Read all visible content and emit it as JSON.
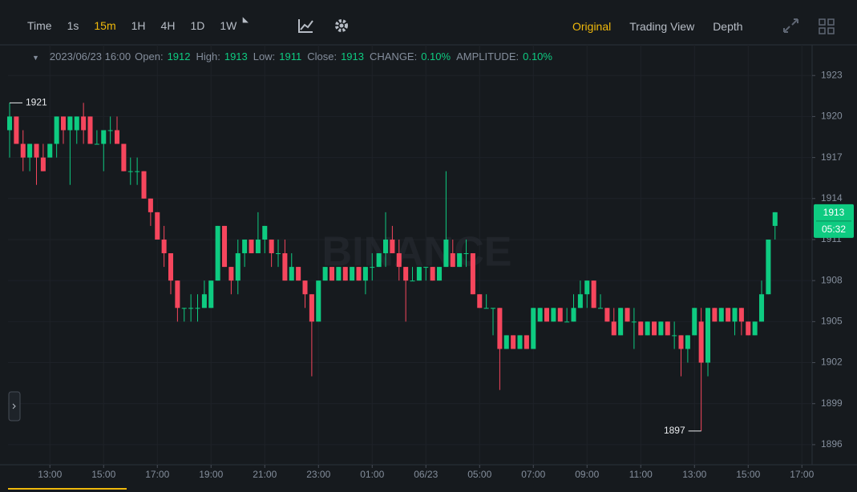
{
  "toolbar": {
    "intervals": [
      "Time",
      "1s",
      "15m",
      "1H",
      "4H",
      "1D",
      "1W"
    ],
    "views": [
      "Original",
      "Trading View",
      "Depth"
    ]
  },
  "info": {
    "datetime": "2023/06/23 16:00",
    "fields": [
      {
        "label": "Open:",
        "value": "1912"
      },
      {
        "label": "High:",
        "value": "1913"
      },
      {
        "label": "Low:",
        "value": "1911"
      },
      {
        "label": "Close:",
        "value": "1913"
      },
      {
        "label": "CHANGE:",
        "value": "0.10%"
      },
      {
        "label": "AMPLITUDE:",
        "value": "0.10%"
      }
    ]
  },
  "chart_data": {
    "type": "candlestick",
    "watermark": "BINANCE",
    "countdown": "05:32",
    "up_color": "#0ecb81",
    "down_color": "#f6465d",
    "grid": true,
    "open": [
      1919,
      1920,
      1918,
      1917,
      1918,
      1917,
      1917,
      1918,
      1920,
      1919,
      1919,
      1920,
      1920,
      1918,
      1918,
      1919,
      1919,
      1918,
      1916,
      1916,
      1916,
      1914,
      1913,
      1911,
      1910,
      1908,
      1906,
      1906,
      1906,
      1906,
      1906,
      1908,
      1912,
      1909,
      1908,
      1910,
      1911,
      1910,
      1911,
      1911,
      1910,
      1910,
      1908,
      1909,
      1908,
      1907,
      1905,
      1908,
      1909,
      1908,
      1909,
      1908,
      1909,
      1908,
      1909,
      1909,
      1910,
      1911,
      1910,
      1909,
      1908,
      1908,
      1909,
      1909,
      1908,
      1909,
      1910,
      1909,
      1910,
      1910,
      1907,
      1906,
      1906,
      1906,
      1903,
      1904,
      1903,
      1904,
      1903,
      1905,
      1906,
      1905,
      1906,
      1905,
      1905,
      1906,
      1907,
      1908,
      1906,
      1906,
      1905,
      1904,
      1906,
      1905,
      1905,
      1904,
      1905,
      1904,
      1905,
      1904,
      1904,
      1903,
      1904,
      1905,
      1902,
      1906,
      1905,
      1906,
      1905,
      1906,
      1905,
      1904,
      1905,
      1907,
      1912
    ],
    "high": [
      1921,
      1920,
      1919,
      1918,
      1918,
      1918,
      1918,
      1920,
      1920,
      1920,
      1920,
      1921,
      1920,
      1919,
      1919,
      1920,
      1920,
      1918,
      1917,
      1917,
      1916,
      1914,
      1913,
      1912,
      1910,
      1908,
      1906,
      1907,
      1907,
      1908,
      1908,
      1912,
      1912,
      1909,
      1911,
      1911,
      1911,
      1913,
      1912,
      1911,
      1911,
      1911,
      1910,
      1909,
      1908,
      1907,
      1908,
      1909,
      1909,
      1909,
      1909,
      1909,
      1909,
      1909,
      1910,
      1910,
      1913,
      1912,
      1911,
      1909,
      1909,
      1909,
      1909,
      1909,
      1909,
      1916,
      1911,
      1910,
      1911,
      1910,
      1907,
      1907,
      1906,
      1906,
      1904,
      1904,
      1904,
      1904,
      1906,
      1906,
      1906,
      1906,
      1906,
      1906,
      1907,
      1908,
      1908,
      1908,
      1907,
      1906,
      1906,
      1906,
      1906,
      1906,
      1905,
      1905,
      1905,
      1905,
      1905,
      1905,
      1904,
      1904,
      1906,
      1906,
      1906,
      1906,
      1906,
      1906,
      1906,
      1906,
      1905,
      1905,
      1908,
      1911,
      1913
    ],
    "low": [
      1917,
      1918,
      1916,
      1916,
      1915,
      1916,
      1917,
      1917,
      1918,
      1915,
      1918,
      1918,
      1918,
      1918,
      1916,
      1918,
      1918,
      1916,
      1915,
      1915,
      1914,
      1912,
      1911,
      1909,
      1907,
      1905,
      1905,
      1905,
      1905,
      1906,
      1906,
      1908,
      1909,
      1907,
      1907,
      1909,
      1910,
      1910,
      1910,
      1909,
      1909,
      1908,
      1908,
      1908,
      1906,
      1901,
      1905,
      1908,
      1908,
      1908,
      1908,
      1908,
      1908,
      1907,
      1908,
      1909,
      1909,
      1910,
      1908,
      1905,
      1908,
      1908,
      1908,
      1908,
      1908,
      1909,
      1909,
      1909,
      1909,
      1907,
      1906,
      1906,
      1904,
      1900,
      1903,
      1903,
      1903,
      1903,
      1903,
      1905,
      1905,
      1905,
      1905,
      1905,
      1905,
      1906,
      1906,
      1906,
      1906,
      1905,
      1904,
      1904,
      1905,
      1903,
      1904,
      1904,
      1904,
      1904,
      1904,
      1903,
      1901,
      1902,
      1904,
      1897,
      1901,
      1905,
      1905,
      1905,
      1904,
      1904,
      1904,
      1904,
      1905,
      1907,
      1911
    ],
    "close": [
      1920,
      1918,
      1917,
      1918,
      1917,
      1916,
      1918,
      1920,
      1919,
      1920,
      1920,
      1919,
      1918,
      1918,
      1919,
      1919,
      1918,
      1916,
      1916,
      1916,
      1914,
      1913,
      1911,
      1910,
      1908,
      1906,
      1906,
      1906,
      1906,
      1907,
      1908,
      1912,
      1909,
      1908,
      1910,
      1911,
      1910,
      1911,
      1912,
      1910,
      1910,
      1908,
      1909,
      1908,
      1907,
      1905,
      1908,
      1909,
      1908,
      1909,
      1908,
      1909,
      1908,
      1909,
      1909,
      1910,
      1911,
      1910,
      1909,
      1908,
      1908,
      1909,
      1909,
      1908,
      1909,
      1911,
      1909,
      1910,
      1910,
      1907,
      1906,
      1906,
      1906,
      1903,
      1904,
      1903,
      1904,
      1903,
      1906,
      1906,
      1905,
      1906,
      1905,
      1905,
      1906,
      1907,
      1908,
      1906,
      1906,
      1905,
      1904,
      1906,
      1905,
      1905,
      1904,
      1905,
      1904,
      1905,
      1904,
      1904,
      1903,
      1904,
      1906,
      1902,
      1906,
      1905,
      1906,
      1905,
      1906,
      1905,
      1904,
      1905,
      1907,
      1911,
      1913
    ],
    "xlim": [
      -0.24,
      119.52
    ],
    "xticks": [
      {
        "value": 6,
        "label": "13:00"
      },
      {
        "value": 14,
        "label": "15:00"
      },
      {
        "value": 22,
        "label": "17:00"
      },
      {
        "value": 30,
        "label": "19:00"
      },
      {
        "value": 38,
        "label": "21:00"
      },
      {
        "value": 46,
        "label": "23:00"
      },
      {
        "value": 54,
        "label": "01:00"
      },
      {
        "value": 62,
        "label": "06/23"
      },
      {
        "value": 70,
        "label": "05:00"
      },
      {
        "value": 78,
        "label": "07:00"
      },
      {
        "value": 86,
        "label": "09:00"
      },
      {
        "value": 94,
        "label": "11:00"
      },
      {
        "value": 102,
        "label": "13:00"
      },
      {
        "value": 110,
        "label": "15:00"
      },
      {
        "value": 118,
        "label": "17:00"
      }
    ],
    "ylim": [
      1894.53,
      1925.24
    ],
    "yticks": [
      1896,
      1899,
      1902,
      1905,
      1908,
      1911,
      1914,
      1917,
      1920,
      1923
    ]
  }
}
